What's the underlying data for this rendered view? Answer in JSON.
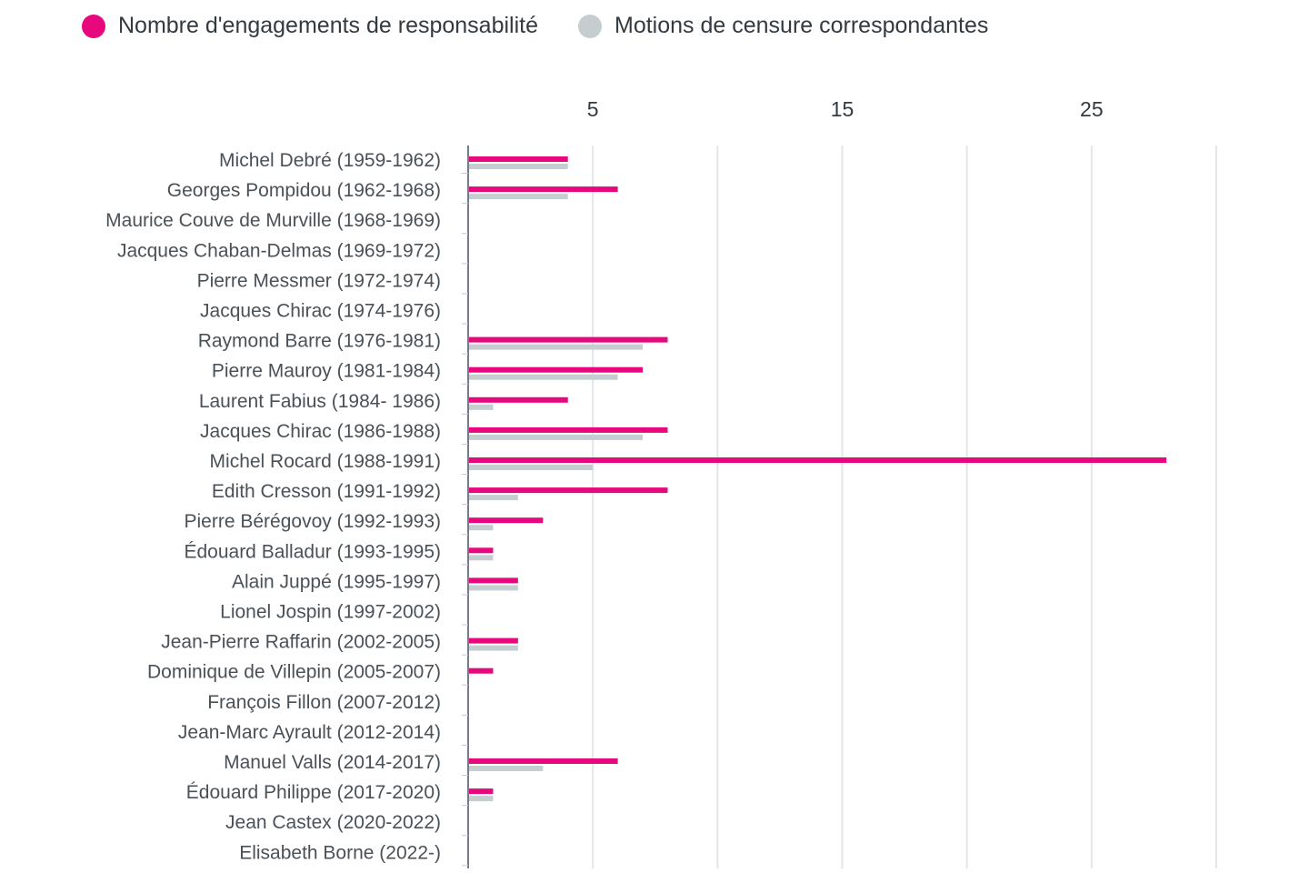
{
  "colors": {
    "engagements": "#e8087e",
    "motions": "#c6cdd0",
    "grid": "#e3e6e8",
    "axis": "#4a4f6a"
  },
  "legend": {
    "engagements_label": "Nombre d'engagements de responsabilité",
    "motions_label": "Motions de censure correspondantes"
  },
  "chart_data": {
    "type": "bar",
    "orientation": "horizontal",
    "title": "",
    "xlabel": "",
    "ylabel": "",
    "xlim": [
      0,
      30
    ],
    "xticks": [
      5,
      15,
      25
    ],
    "grid": true,
    "legend_position": "top-left",
    "categories": [
      "Michel Debré (1959-1962)",
      "Georges Pompidou (1962-1968)",
      "Maurice Couve de Murville (1968-1969)",
      "Jacques Chaban-Delmas (1969-1972)",
      "Pierre Messmer (1972-1974)",
      "Jacques Chirac (1974-1976)",
      "Raymond Barre (1976-1981)",
      "Pierre Mauroy (1981-1984)",
      "Laurent Fabius (1984- 1986)",
      "Jacques Chirac (1986-1988)",
      "Michel Rocard (1988-1991)",
      "Edith Cresson (1991-1992)",
      "Pierre Bérégovoy (1992-1993)",
      "Édouard Balladur (1993-1995)",
      "Alain Juppé (1995-1997)",
      "Lionel Jospin (1997-2002)",
      "Jean-Pierre Raffarin (2002-2005)",
      "Dominique de Villepin (2005-2007)",
      "François Fillon (2007-2012)",
      "Jean-Marc Ayrault (2012-2014)",
      "Manuel Valls (2014-2017)",
      "Édouard Philippe (2017-2020)",
      "Jean Castex (2020-2022)",
      "Elisabeth Borne (2022-)"
    ],
    "series": [
      {
        "name": "Nombre d'engagements de responsabilité",
        "values": [
          4,
          6,
          0,
          0,
          0,
          0,
          8,
          7,
          4,
          8,
          28,
          8,
          3,
          1,
          2,
          0,
          2,
          1,
          0,
          0,
          6,
          1,
          0,
          0
        ]
      },
      {
        "name": "Motions de censure correspondantes",
        "values": [
          4,
          4,
          0,
          0,
          0,
          0,
          7,
          6,
          1,
          7,
          5,
          2,
          1,
          1,
          2,
          0,
          2,
          0,
          0,
          0,
          3,
          1,
          0,
          0
        ]
      }
    ]
  }
}
